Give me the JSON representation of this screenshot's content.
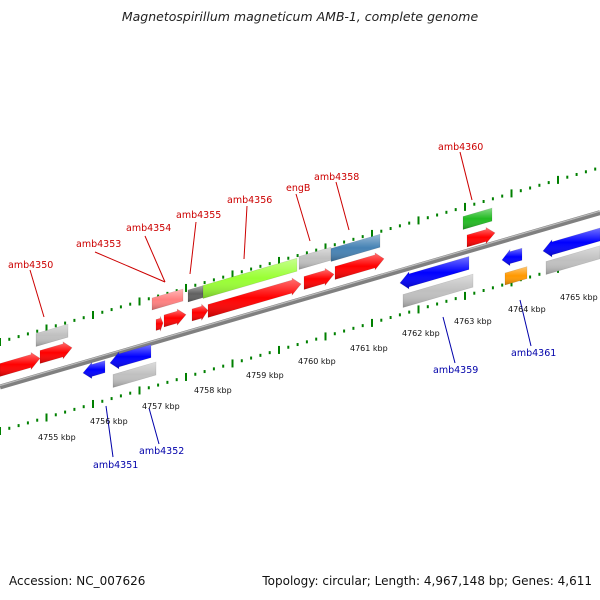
{
  "title": "Magnetospirillum magneticum AMB-1, complete genome",
  "footer": {
    "accession": "Accession: NC_007626",
    "summary": "Topology: circular; Length: 4,967,148 bp; Genes: 4,611"
  },
  "scale_labels": [
    "4755 kbp",
    "4756 kbp",
    "4757 kbp",
    "4758 kbp",
    "4759 kbp",
    "4760 kbp",
    "4761 kbp",
    "4762 kbp",
    "4763 kbp",
    "4764 kbp",
    "4765 kbp"
  ],
  "gene_labels_top": [
    "amb4350",
    "amb4353",
    "amb4354",
    "amb4355",
    "amb4356",
    "engB",
    "amb4358",
    "amb4360"
  ],
  "gene_labels_bottom": [
    "amb4351",
    "amb4352",
    "amb4359",
    "amb4361"
  ],
  "colors": {
    "forward": "#ff0000",
    "reverse": "#0000ff",
    "tick": "#008000",
    "backbone": "#808080",
    "light_green": "#99ff33",
    "steel_blue": "#4682b4",
    "green": "#22bb22",
    "orange": "#ff9900",
    "pink": "#ff8080",
    "gray": "#c0c0c0",
    "dark_gray": "#606060"
  }
}
